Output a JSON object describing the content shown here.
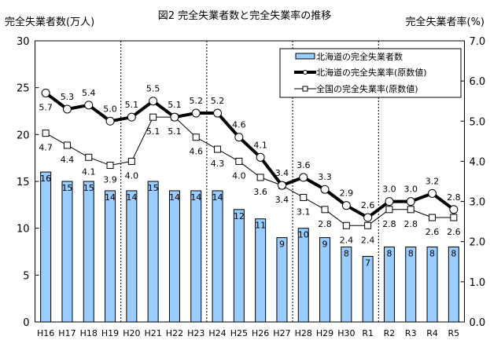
{
  "chart_data": {
    "type": "bar+line",
    "title": "図2  完全失業者数と完全失業率の推移",
    "ylabel_left": "完全失業者数(万人)",
    "ylabel_right": "完全失業者率(%)",
    "ylim_left": [
      0,
      30
    ],
    "ylim_right": [
      0,
      7
    ],
    "yticks_left": [
      "0",
      "5",
      "10",
      "15",
      "20",
      "25",
      "30"
    ],
    "yticks_right": [
      "0.0",
      "1.0",
      "2.0",
      "3.0",
      "4.0",
      "5.0",
      "6.0",
      "7.0"
    ],
    "categories": [
      "H16",
      "H17",
      "H18",
      "H19",
      "H20",
      "H21",
      "H22",
      "H23",
      "H24",
      "H25",
      "H26",
      "H27",
      "H28",
      "H29",
      "H30",
      "R1",
      "R2",
      "R3",
      "R4",
      "R5"
    ],
    "dividers_after": [
      "H19",
      "H23",
      "H27",
      "R1"
    ],
    "legend_placement": "top-right",
    "series": [
      {
        "name": "北海道の完全失業者数",
        "type": "bar",
        "axis": "left",
        "color": "#99ccff",
        "values": [
          16,
          15,
          15,
          14,
          14,
          15,
          14,
          14,
          14,
          12,
          11,
          9,
          10,
          9,
          8,
          7,
          8,
          8,
          8,
          8
        ]
      },
      {
        "name": "北海道の完全失業率(原数値)",
        "type": "line",
        "axis": "right",
        "marker": "circle",
        "color": "#000000",
        "values": [
          5.7,
          5.3,
          5.4,
          5.0,
          5.1,
          5.5,
          5.1,
          5.2,
          5.2,
          4.6,
          4.1,
          3.4,
          3.6,
          3.3,
          2.9,
          2.6,
          3.0,
          3.0,
          3.2,
          2.8
        ]
      },
      {
        "name": "全国の完全失業率(原数値)",
        "type": "line",
        "axis": "right",
        "marker": "square",
        "color": "#000000",
        "values": [
          4.7,
          4.4,
          4.1,
          3.9,
          4.0,
          5.1,
          5.1,
          4.6,
          4.3,
          4.0,
          3.6,
          3.4,
          3.1,
          2.8,
          2.4,
          2.4,
          2.8,
          2.8,
          2.6,
          2.6
        ]
      }
    ]
  }
}
